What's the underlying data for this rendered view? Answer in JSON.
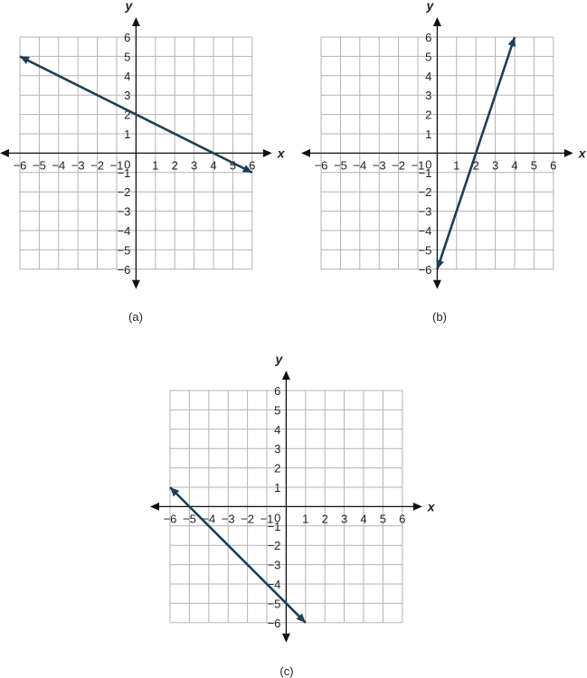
{
  "chart_data": [
    {
      "type": "line",
      "panel_label": "(a)",
      "xlabel": "x",
      "ylabel": "y",
      "xlim": [
        -6,
        6
      ],
      "ylim": [
        -6,
        6
      ],
      "xticks": [
        "−6",
        "−5",
        "−4",
        "−3",
        "−2",
        "−1",
        "1",
        "2",
        "3",
        "4",
        "5",
        "6"
      ],
      "yticks": [
        "6",
        "5",
        "4",
        "3",
        "2",
        "1",
        "−1",
        "−2",
        "−3",
        "−4",
        "−5",
        "−6"
      ],
      "origin_label": "0",
      "grid": true,
      "series": [
        {
          "x": [
            -6,
            6
          ],
          "y": [
            5,
            -1
          ],
          "arrows": "both"
        }
      ]
    },
    {
      "type": "line",
      "panel_label": "(b)",
      "xlabel": "x",
      "ylabel": "y",
      "xlim": [
        -6,
        6
      ],
      "ylim": [
        -6,
        6
      ],
      "xticks": [
        "−6",
        "−5",
        "−4",
        "−3",
        "−2",
        "−1",
        "1",
        "2",
        "3",
        "4",
        "5",
        "6"
      ],
      "yticks": [
        "6",
        "5",
        "4",
        "3",
        "2",
        "1",
        "−1",
        "−2",
        "−3",
        "−4",
        "−5",
        "−6"
      ],
      "origin_label": "0",
      "grid": true,
      "series": [
        {
          "x": [
            0,
            4
          ],
          "y": [
            -6,
            6
          ],
          "arrows": "both"
        }
      ]
    },
    {
      "type": "line",
      "panel_label": "(c)",
      "xlabel": "x",
      "ylabel": "y",
      "xlim": [
        -6,
        6
      ],
      "ylim": [
        -6,
        6
      ],
      "xticks": [
        "−6",
        "−5",
        "−4",
        "−3",
        "−2",
        "−1",
        "1",
        "2",
        "3",
        "4",
        "5",
        "6"
      ],
      "yticks": [
        "6",
        "5",
        "4",
        "3",
        "2",
        "1",
        "−1",
        "−2",
        "−3",
        "−4",
        "−5",
        "−6"
      ],
      "origin_label": "0",
      "grid": true,
      "series": [
        {
          "x": [
            -6,
            1
          ],
          "y": [
            1,
            -6
          ],
          "arrows": "both"
        }
      ]
    }
  ],
  "colors": {
    "line": "#1c3f57",
    "grid": "#b3b3b3",
    "axis": "#111111"
  }
}
